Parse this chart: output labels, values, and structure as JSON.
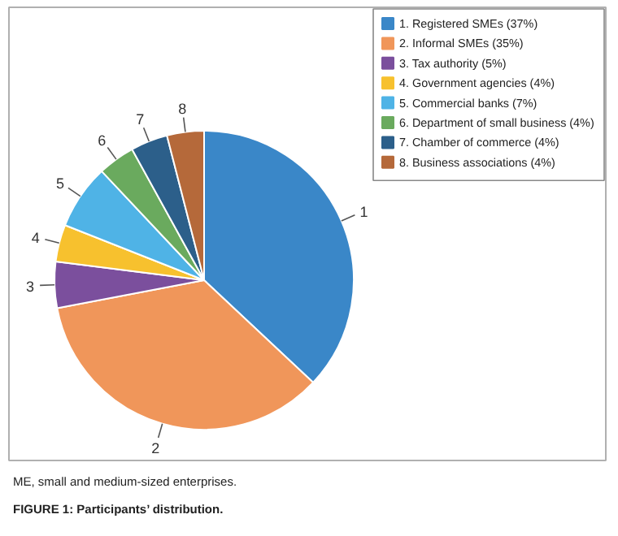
{
  "chart_data": {
    "type": "pie",
    "categories": [
      "1. Registered SMEs (37%)",
      "2. Informal SMEs (35%)",
      "3. Tax authority (5%)",
      "4. Government agencies (4%)",
      "5. Commercial banks (7%)",
      "6. Department of small business (4%)",
      "7. Chamber of commerce (4%)",
      "8. Business associations (4%)"
    ],
    "values": [
      37,
      35,
      5,
      4,
      7,
      4,
      4,
      4
    ],
    "colors": [
      "#3a87c8",
      "#f0965a",
      "#7b4f9d",
      "#f7c12e",
      "#4fb3e6",
      "#6aaa5e",
      "#2c5f8a",
      "#b5693a"
    ],
    "legend": "top right",
    "annotations": [
      {
        "text": "1",
        "x": "1. Registered SMEs (37%)"
      },
      {
        "text": "2",
        "x": "2. Informal SMEs (35%)"
      },
      {
        "text": "3",
        "x": "3. Tax authority (5%)"
      },
      {
        "text": "4",
        "x": "4. Government agencies (4%)"
      },
      {
        "text": "5",
        "x": "5. Commercial banks (7%)"
      },
      {
        "text": "6",
        "x": "6. Department of small business (4%)"
      },
      {
        "text": "7",
        "x": "7. Chamber of commerce (4%)"
      },
      {
        "text": "8",
        "x": "8. Business associations (4%)"
      },
      "ME, small and medium-sized enterprises.",
      "FIGURE 1: Participants’ distribution."
    ]
  }
}
